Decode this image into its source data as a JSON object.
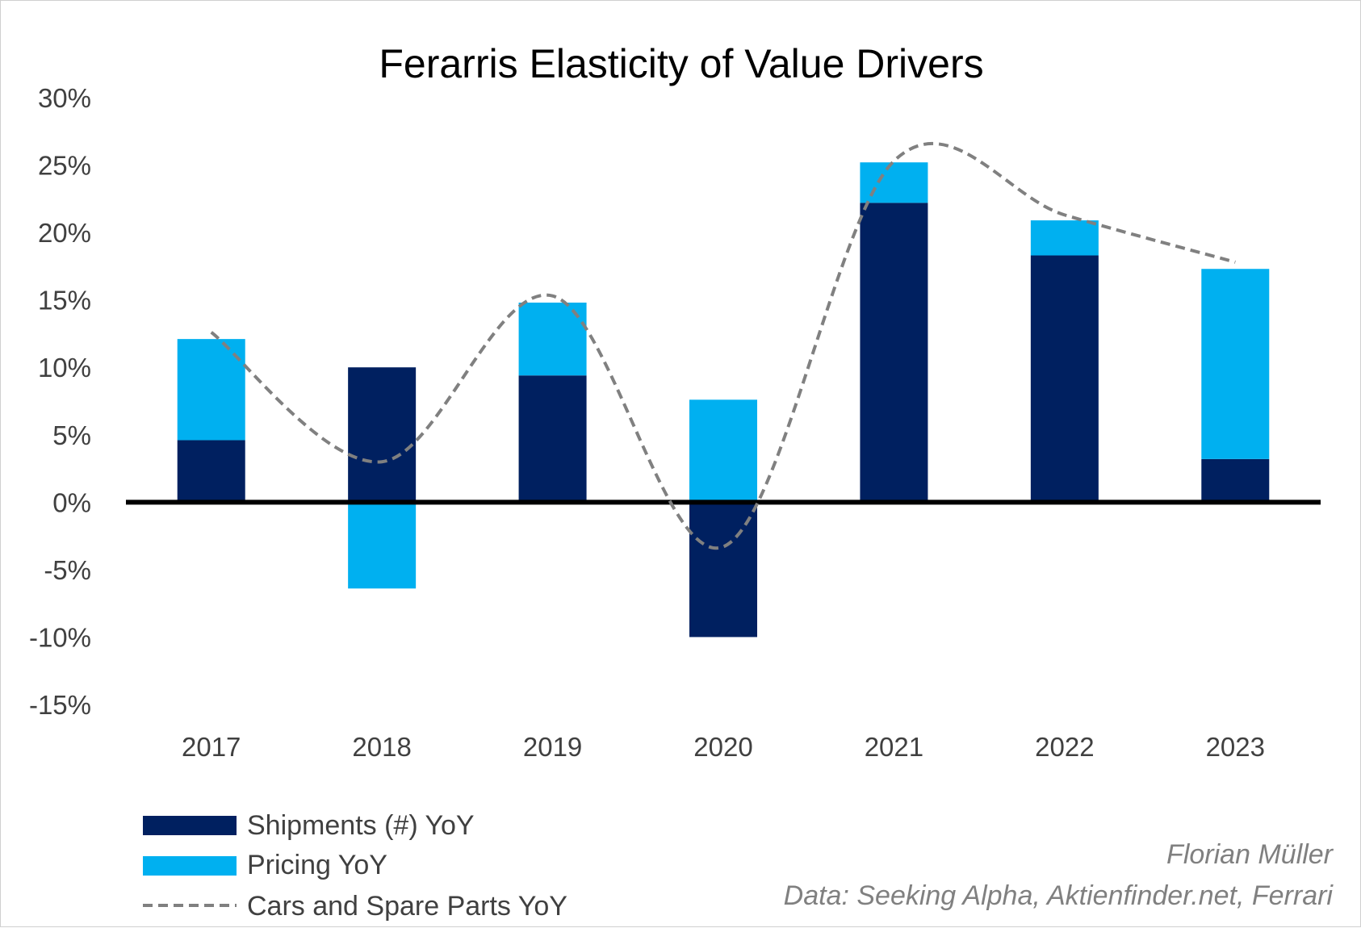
{
  "chart_data": {
    "type": "bar",
    "stacked": true,
    "title": "Ferarris Elasticity of Value Drivers",
    "xlabel": "",
    "ylabel": "",
    "categories": [
      "2017",
      "2018",
      "2019",
      "2020",
      "2021",
      "2022",
      "2023"
    ],
    "ylim": [
      -15,
      30
    ],
    "yticks": [
      "30%",
      "25%",
      "20%",
      "15%",
      "10%",
      "5%",
      "0%",
      "-5%",
      "-10%",
      "-15%"
    ],
    "ytick_values": [
      30,
      25,
      20,
      15,
      10,
      5,
      0,
      -5,
      -10,
      -15
    ],
    "grid": false,
    "legend_position": "bottom-left",
    "series": [
      {
        "name": "Shipments (#) YoY",
        "kind": "bar",
        "color": "#002060",
        "values": [
          4.6,
          10.0,
          9.4,
          -10.0,
          22.2,
          18.3,
          3.2
        ]
      },
      {
        "name": "Pricing YoY",
        "kind": "bar",
        "color": "#00B0F0",
        "values": [
          7.5,
          -6.4,
          5.4,
          7.6,
          3.0,
          2.6,
          14.1
        ]
      },
      {
        "name": "Cars and Spare Parts YoY",
        "kind": "line",
        "style": "dashed",
        "smooth": true,
        "color": "#808080",
        "values": [
          12.6,
          3.0,
          15.3,
          -3.3,
          25.3,
          21.3,
          17.8
        ]
      }
    ]
  },
  "legend": {
    "items": [
      {
        "label": "Shipments (#) YoY",
        "color": "#002060",
        "icon": "bar-swatch"
      },
      {
        "label": "Pricing YoY",
        "color": "#00B0F0",
        "icon": "bar-swatch"
      },
      {
        "label": "Cars and Spare Parts YoY",
        "color": "#808080",
        "icon": "dashed-line"
      }
    ]
  },
  "credits": {
    "author": "Florian Müller",
    "source": "Data: Seeking Alpha, Aktienfinder.net, Ferrari"
  }
}
